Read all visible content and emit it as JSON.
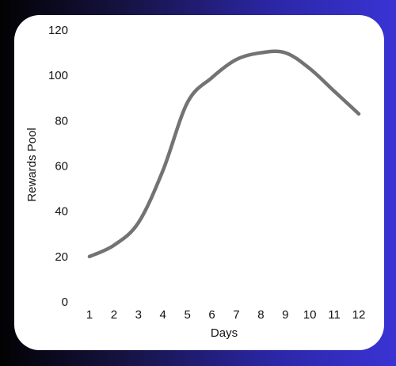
{
  "chart_data": {
    "type": "line",
    "title": "",
    "xlabel": "Days",
    "ylabel": "Rewards Pool",
    "x": [
      1,
      2,
      3,
      4,
      5,
      6,
      7,
      8,
      9,
      10,
      11,
      12
    ],
    "series": [
      {
        "values": [
          20,
          25,
          35,
          58,
          88,
          99,
          107,
          110,
          110,
          103,
          93,
          83
        ]
      }
    ],
    "xticks": [
      "1",
      "2",
      "3",
      "4",
      "5",
      "6",
      "7",
      "8",
      "9",
      "10",
      "11",
      "12"
    ],
    "yticks": [
      "0",
      "20",
      "40",
      "60",
      "80",
      "100",
      "120"
    ],
    "ylim": [
      0,
      120
    ],
    "xlim": [
      1,
      12
    ],
    "grid": false,
    "line_color": "#737373"
  }
}
